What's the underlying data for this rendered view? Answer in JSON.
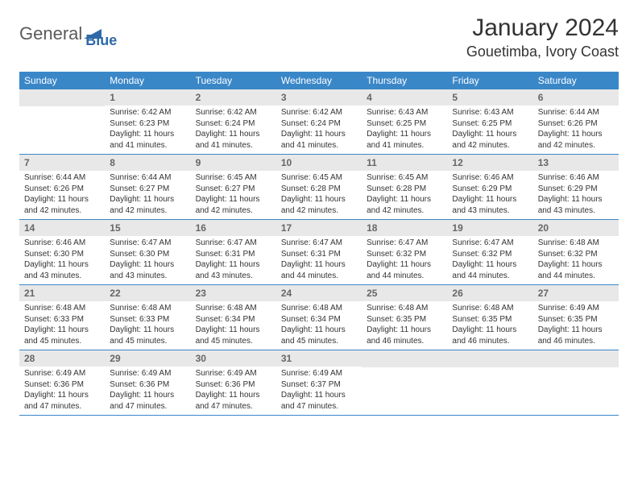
{
  "logo": {
    "text1": "General",
    "text2": "Blue"
  },
  "title": "January 2024",
  "location": "Gouetimba, Ivory Coast",
  "colors": {
    "header_bg": "#3a87c8",
    "header_text": "#ffffff",
    "daynum_bg": "#e8e8e8",
    "daynum_text": "#666666",
    "body_text": "#333333",
    "border": "#3a87c8"
  },
  "font": {
    "family": "Arial",
    "title_size": 30,
    "location_size": 18,
    "th_size": 12,
    "daynum_size": 12,
    "data_size": 10
  },
  "daysOfWeek": [
    "Sunday",
    "Monday",
    "Tuesday",
    "Wednesday",
    "Thursday",
    "Friday",
    "Saturday"
  ],
  "startOffset": 1,
  "days": [
    {
      "n": 1,
      "sunrise": "6:42 AM",
      "sunset": "6:23 PM",
      "daylight": "11 hours and 41 minutes."
    },
    {
      "n": 2,
      "sunrise": "6:42 AM",
      "sunset": "6:24 PM",
      "daylight": "11 hours and 41 minutes."
    },
    {
      "n": 3,
      "sunrise": "6:42 AM",
      "sunset": "6:24 PM",
      "daylight": "11 hours and 41 minutes."
    },
    {
      "n": 4,
      "sunrise": "6:43 AM",
      "sunset": "6:25 PM",
      "daylight": "11 hours and 41 minutes."
    },
    {
      "n": 5,
      "sunrise": "6:43 AM",
      "sunset": "6:25 PM",
      "daylight": "11 hours and 42 minutes."
    },
    {
      "n": 6,
      "sunrise": "6:44 AM",
      "sunset": "6:26 PM",
      "daylight": "11 hours and 42 minutes."
    },
    {
      "n": 7,
      "sunrise": "6:44 AM",
      "sunset": "6:26 PM",
      "daylight": "11 hours and 42 minutes."
    },
    {
      "n": 8,
      "sunrise": "6:44 AM",
      "sunset": "6:27 PM",
      "daylight": "11 hours and 42 minutes."
    },
    {
      "n": 9,
      "sunrise": "6:45 AM",
      "sunset": "6:27 PM",
      "daylight": "11 hours and 42 minutes."
    },
    {
      "n": 10,
      "sunrise": "6:45 AM",
      "sunset": "6:28 PM",
      "daylight": "11 hours and 42 minutes."
    },
    {
      "n": 11,
      "sunrise": "6:45 AM",
      "sunset": "6:28 PM",
      "daylight": "11 hours and 42 minutes."
    },
    {
      "n": 12,
      "sunrise": "6:46 AM",
      "sunset": "6:29 PM",
      "daylight": "11 hours and 43 minutes."
    },
    {
      "n": 13,
      "sunrise": "6:46 AM",
      "sunset": "6:29 PM",
      "daylight": "11 hours and 43 minutes."
    },
    {
      "n": 14,
      "sunrise": "6:46 AM",
      "sunset": "6:30 PM",
      "daylight": "11 hours and 43 minutes."
    },
    {
      "n": 15,
      "sunrise": "6:47 AM",
      "sunset": "6:30 PM",
      "daylight": "11 hours and 43 minutes."
    },
    {
      "n": 16,
      "sunrise": "6:47 AM",
      "sunset": "6:31 PM",
      "daylight": "11 hours and 43 minutes."
    },
    {
      "n": 17,
      "sunrise": "6:47 AM",
      "sunset": "6:31 PM",
      "daylight": "11 hours and 44 minutes."
    },
    {
      "n": 18,
      "sunrise": "6:47 AM",
      "sunset": "6:32 PM",
      "daylight": "11 hours and 44 minutes."
    },
    {
      "n": 19,
      "sunrise": "6:47 AM",
      "sunset": "6:32 PM",
      "daylight": "11 hours and 44 minutes."
    },
    {
      "n": 20,
      "sunrise": "6:48 AM",
      "sunset": "6:32 PM",
      "daylight": "11 hours and 44 minutes."
    },
    {
      "n": 21,
      "sunrise": "6:48 AM",
      "sunset": "6:33 PM",
      "daylight": "11 hours and 45 minutes."
    },
    {
      "n": 22,
      "sunrise": "6:48 AM",
      "sunset": "6:33 PM",
      "daylight": "11 hours and 45 minutes."
    },
    {
      "n": 23,
      "sunrise": "6:48 AM",
      "sunset": "6:34 PM",
      "daylight": "11 hours and 45 minutes."
    },
    {
      "n": 24,
      "sunrise": "6:48 AM",
      "sunset": "6:34 PM",
      "daylight": "11 hours and 45 minutes."
    },
    {
      "n": 25,
      "sunrise": "6:48 AM",
      "sunset": "6:35 PM",
      "daylight": "11 hours and 46 minutes."
    },
    {
      "n": 26,
      "sunrise": "6:48 AM",
      "sunset": "6:35 PM",
      "daylight": "11 hours and 46 minutes."
    },
    {
      "n": 27,
      "sunrise": "6:49 AM",
      "sunset": "6:35 PM",
      "daylight": "11 hours and 46 minutes."
    },
    {
      "n": 28,
      "sunrise": "6:49 AM",
      "sunset": "6:36 PM",
      "daylight": "11 hours and 47 minutes."
    },
    {
      "n": 29,
      "sunrise": "6:49 AM",
      "sunset": "6:36 PM",
      "daylight": "11 hours and 47 minutes."
    },
    {
      "n": 30,
      "sunrise": "6:49 AM",
      "sunset": "6:36 PM",
      "daylight": "11 hours and 47 minutes."
    },
    {
      "n": 31,
      "sunrise": "6:49 AM",
      "sunset": "6:37 PM",
      "daylight": "11 hours and 47 minutes."
    }
  ],
  "labels": {
    "sunrise_prefix": "Sunrise: ",
    "sunset_prefix": "Sunset: ",
    "daylight_prefix": "Daylight: "
  }
}
